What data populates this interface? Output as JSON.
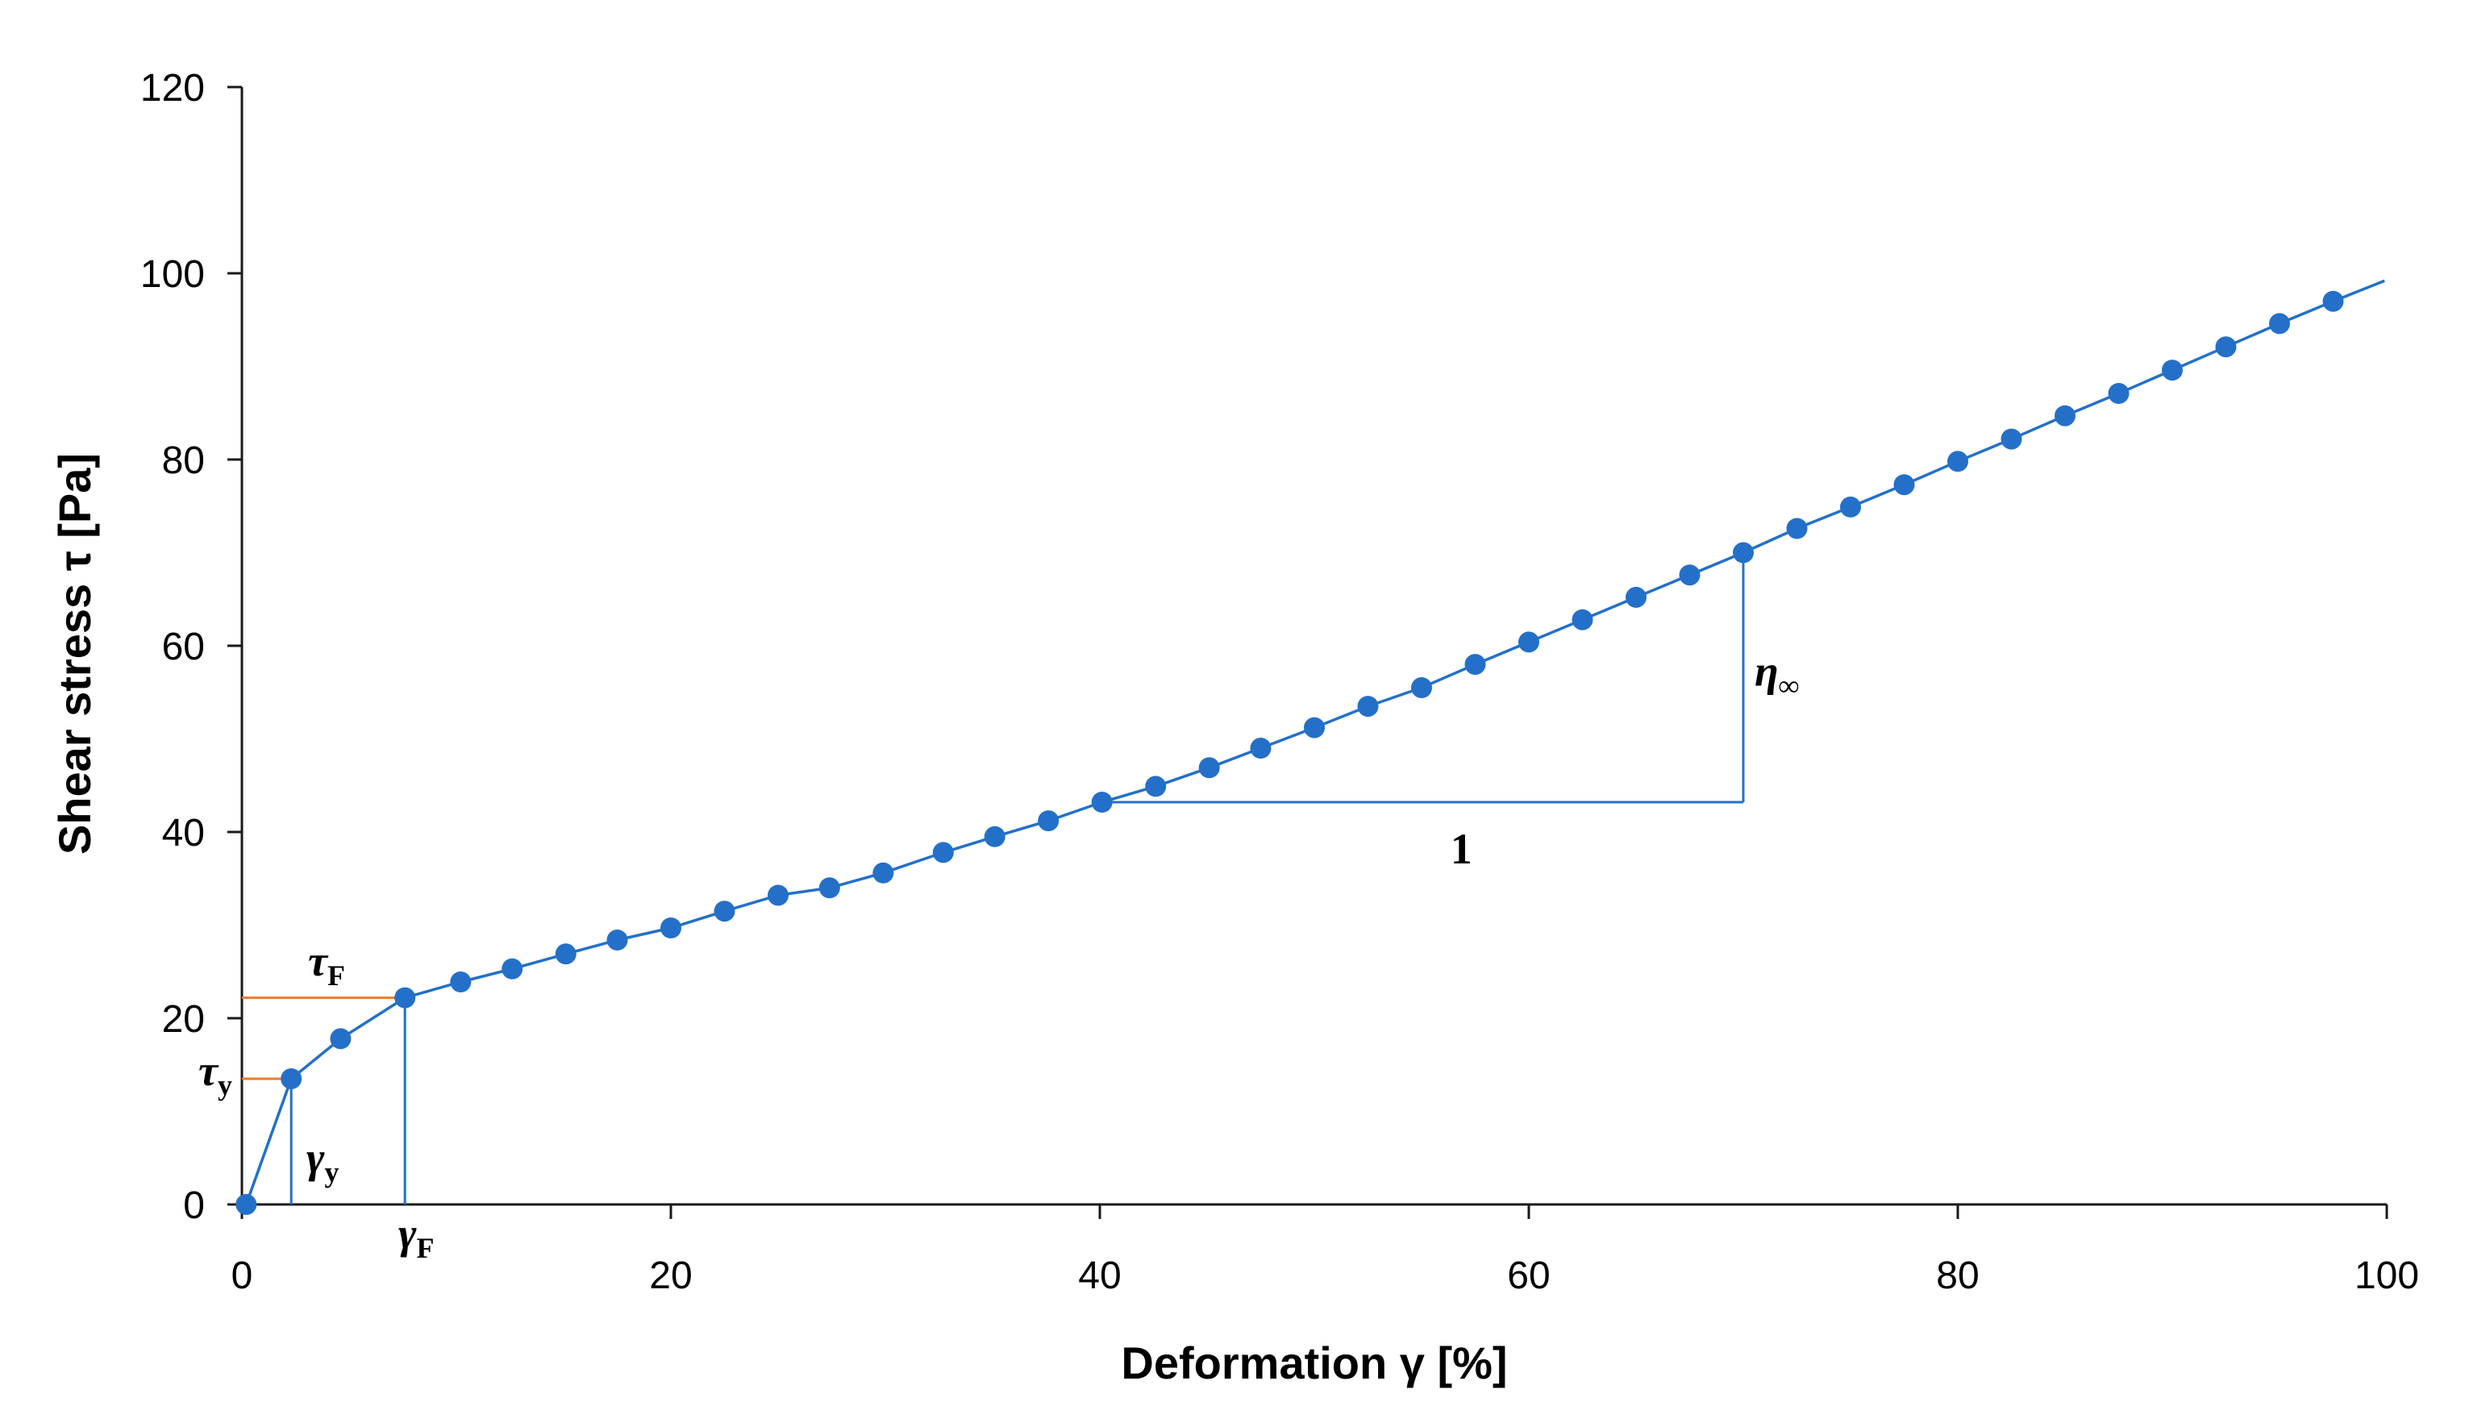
{
  "chart_data": {
    "type": "line",
    "title": "",
    "xlabel": "Deformation γ [%]",
    "ylabel": "Shear stress τ [Pa]",
    "xlim": [
      0,
      100
    ],
    "ylim": [
      0,
      120
    ],
    "xticks": [
      0,
      20,
      40,
      60,
      80,
      100
    ],
    "yticks": [
      0,
      20,
      40,
      60,
      80,
      100,
      120
    ],
    "xtick_labels": [
      "0",
      "20",
      "40",
      "60",
      "80",
      "100"
    ],
    "ytick_labels": [
      "0",
      "20",
      "40",
      "60",
      "80",
      "100",
      "120"
    ],
    "grid": false,
    "legend": "none",
    "series": [
      {
        "name": "Shear stress",
        "color": "#2470C8",
        "marker": "circle",
        "points": [
          [
            0.2,
            0.0
          ],
          [
            2.3,
            13.5
          ],
          [
            4.6,
            17.8
          ],
          [
            7.6,
            22.2
          ],
          [
            10.2,
            23.9
          ],
          [
            12.6,
            25.3
          ],
          [
            15.1,
            26.9
          ],
          [
            17.5,
            28.4
          ],
          [
            20.0,
            29.7
          ],
          [
            22.5,
            31.5
          ],
          [
            25.0,
            33.2
          ],
          [
            27.4,
            34.0
          ],
          [
            29.9,
            35.6
          ],
          [
            32.7,
            37.8
          ],
          [
            35.1,
            39.5
          ],
          [
            37.6,
            41.2
          ],
          [
            40.1,
            43.2
          ],
          [
            42.6,
            44.9
          ],
          [
            45.1,
            46.9
          ],
          [
            47.5,
            49.0
          ],
          [
            50.0,
            51.2
          ],
          [
            52.5,
            53.5
          ],
          [
            55.0,
            55.5
          ],
          [
            57.5,
            58.0
          ],
          [
            60.0,
            60.4
          ],
          [
            62.5,
            62.8
          ],
          [
            65.0,
            65.2
          ],
          [
            67.5,
            67.6
          ],
          [
            70.0,
            70.0
          ],
          [
            72.5,
            72.6
          ],
          [
            75.0,
            74.9
          ],
          [
            77.5,
            77.3
          ],
          [
            80.0,
            79.8
          ],
          [
            82.5,
            82.2
          ],
          [
            85.0,
            84.7
          ],
          [
            87.5,
            87.1
          ],
          [
            90.0,
            89.6
          ],
          [
            92.5,
            92.1
          ],
          [
            95.0,
            94.6
          ],
          [
            97.5,
            97.0
          ]
        ],
        "line_extension": [
          99.9,
          99.2
        ]
      }
    ],
    "annotations": {
      "tau_y": {
        "symbol": "τ",
        "subscript": "y",
        "value_x": 2.3,
        "value_y": 13.5,
        "color": "#F07A2A"
      },
      "gamma_y": {
        "symbol": "γ",
        "subscript": "y",
        "value_x": 2.3,
        "value_y": 13.5,
        "color": "#2470C8"
      },
      "tau_F": {
        "symbol": "τ",
        "subscript": "F",
        "value_x": 7.6,
        "value_y": 22.2,
        "color": "#F07A2A"
      },
      "gamma_F": {
        "symbol": "γ",
        "subscript": "F",
        "value_x": 7.6,
        "value_y": 22.2,
        "color": "#2470C8"
      },
      "slope_triangle": {
        "run_label": "1",
        "rise_label_symbol": "η",
        "rise_label_subscript": "∞",
        "x_start": 40.1,
        "x_end": 70.0,
        "y_base": 43.2,
        "y_top": 70.0,
        "color": "#2470C8"
      }
    }
  }
}
